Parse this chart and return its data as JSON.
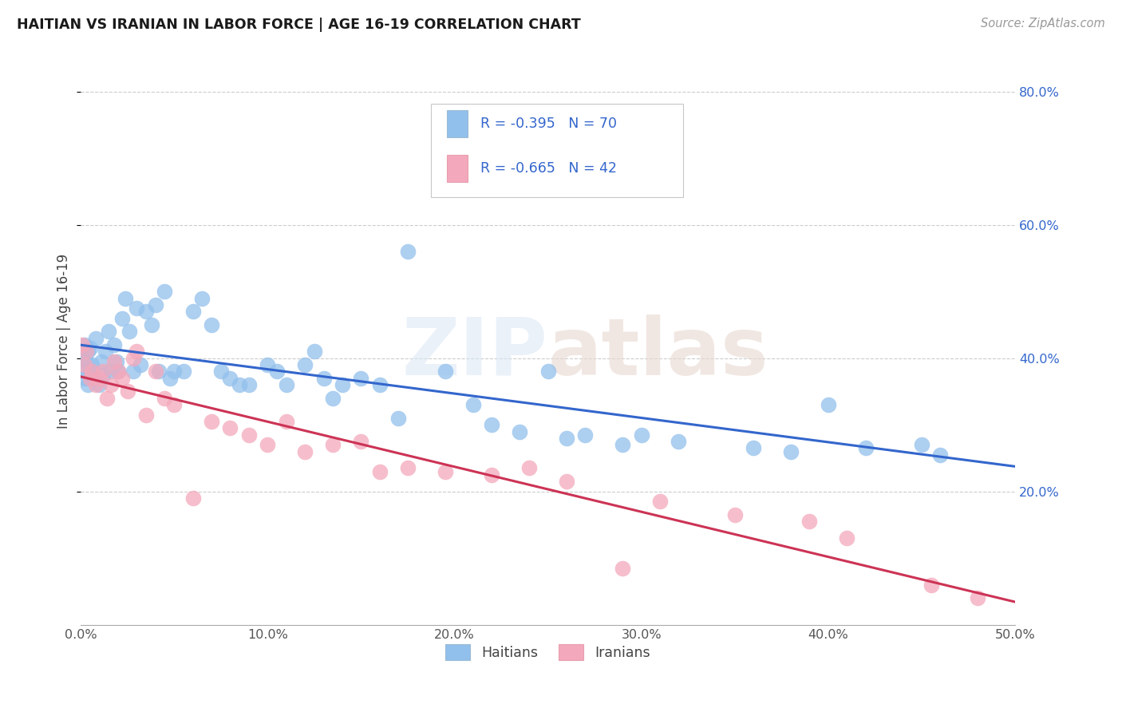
{
  "title": "HAITIAN VS IRANIAN IN LABOR FORCE | AGE 16-19 CORRELATION CHART",
  "source": "Source: ZipAtlas.com",
  "ylabel": "In Labor Force | Age 16-19",
  "xlim": [
    0.0,
    0.5
  ],
  "ylim": [
    0.0,
    0.85
  ],
  "x_ticks": [
    0.0,
    0.1,
    0.2,
    0.3,
    0.4,
    0.5
  ],
  "x_tick_labels": [
    "0.0%",
    "10.0%",
    "20.0%",
    "30.0%",
    "40.0%",
    "50.0%"
  ],
  "y_ticks": [
    0.2,
    0.4,
    0.6,
    0.8
  ],
  "y_tick_labels": [
    "20.0%",
    "40.0%",
    "60.0%",
    "80.0%"
  ],
  "haitian_color": "#92C0EC",
  "iranian_color": "#F4A8BB",
  "haitian_line_color": "#3366CC",
  "iranian_line_color": "#CC3355",
  "R_haitian": -0.395,
  "N_haitian": 70,
  "R_iranian": -0.665,
  "N_iranian": 42,
  "haitian_x": [
    0.001,
    0.001,
    0.002,
    0.002,
    0.003,
    0.004,
    0.004,
    0.005,
    0.005,
    0.006,
    0.007,
    0.008,
    0.01,
    0.011,
    0.012,
    0.013,
    0.015,
    0.016,
    0.018,
    0.019,
    0.02,
    0.022,
    0.024,
    0.026,
    0.028,
    0.03,
    0.032,
    0.035,
    0.038,
    0.04,
    0.042,
    0.045,
    0.048,
    0.05,
    0.055,
    0.06,
    0.065,
    0.07,
    0.075,
    0.08,
    0.085,
    0.09,
    0.1,
    0.105,
    0.11,
    0.12,
    0.125,
    0.13,
    0.135,
    0.14,
    0.15,
    0.16,
    0.17,
    0.175,
    0.195,
    0.21,
    0.22,
    0.235,
    0.25,
    0.26,
    0.27,
    0.29,
    0.3,
    0.32,
    0.36,
    0.38,
    0.4,
    0.42,
    0.45,
    0.46
  ],
  "haitian_y": [
    0.4,
    0.38,
    0.42,
    0.37,
    0.395,
    0.41,
    0.36,
    0.415,
    0.38,
    0.39,
    0.37,
    0.43,
    0.36,
    0.395,
    0.375,
    0.41,
    0.44,
    0.38,
    0.42,
    0.395,
    0.38,
    0.46,
    0.49,
    0.44,
    0.38,
    0.475,
    0.39,
    0.47,
    0.45,
    0.48,
    0.38,
    0.5,
    0.37,
    0.38,
    0.38,
    0.47,
    0.49,
    0.45,
    0.38,
    0.37,
    0.36,
    0.36,
    0.39,
    0.38,
    0.36,
    0.39,
    0.41,
    0.37,
    0.34,
    0.36,
    0.37,
    0.36,
    0.31,
    0.56,
    0.38,
    0.33,
    0.3,
    0.29,
    0.38,
    0.28,
    0.285,
    0.27,
    0.285,
    0.275,
    0.265,
    0.26,
    0.33,
    0.265,
    0.27,
    0.255
  ],
  "iranian_x": [
    0.001,
    0.002,
    0.003,
    0.005,
    0.006,
    0.008,
    0.01,
    0.012,
    0.014,
    0.016,
    0.018,
    0.02,
    0.022,
    0.025,
    0.028,
    0.03,
    0.035,
    0.04,
    0.045,
    0.05,
    0.06,
    0.07,
    0.08,
    0.09,
    0.1,
    0.11,
    0.12,
    0.135,
    0.15,
    0.16,
    0.175,
    0.195,
    0.22,
    0.24,
    0.26,
    0.29,
    0.31,
    0.35,
    0.39,
    0.41,
    0.455,
    0.48
  ],
  "iranian_y": [
    0.42,
    0.39,
    0.41,
    0.37,
    0.38,
    0.36,
    0.37,
    0.38,
    0.34,
    0.36,
    0.395,
    0.38,
    0.37,
    0.35,
    0.4,
    0.41,
    0.315,
    0.38,
    0.34,
    0.33,
    0.19,
    0.305,
    0.295,
    0.285,
    0.27,
    0.305,
    0.26,
    0.27,
    0.275,
    0.23,
    0.235,
    0.23,
    0.225,
    0.235,
    0.215,
    0.085,
    0.185,
    0.165,
    0.155,
    0.13,
    0.06,
    0.04
  ],
  "watermark": "ZIPatlas",
  "background_color": "#ffffff",
  "grid_color": "#cccccc"
}
